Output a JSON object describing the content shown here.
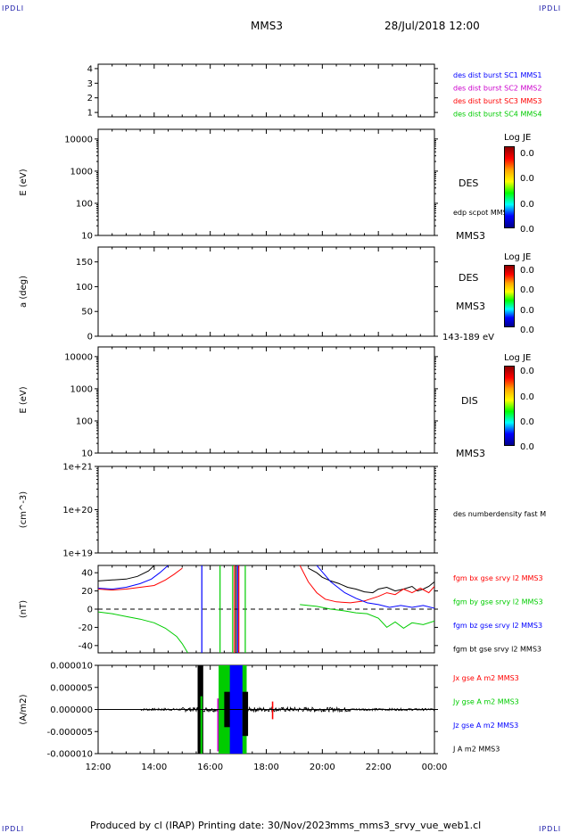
{
  "header": {
    "corner_tl": "IPDLI",
    "corner_tr": "IPDLI",
    "corner_bl": "IPDLI",
    "corner_br": "IPDLI",
    "spacecraft": "MMS3",
    "datetime": "28/Jul/2018 12:00"
  },
  "footer": {
    "produced_by": "Produced by cl (IRAP)",
    "printing_date": "Printing date: 30/Nov/2023",
    "file": "mms_mms3_srvy_vue_web1.cl"
  },
  "colorbars": [
    {
      "title": "Log JE",
      "ticks": [
        "0.0",
        "0.0",
        "0.0",
        "0.0"
      ]
    },
    {
      "title": "Log JE",
      "ticks": [
        "0.0",
        "0.0",
        "0.0",
        "0.0"
      ]
    },
    {
      "title": "Log JE",
      "ticks": [
        "0.0",
        "0.0",
        "0.0",
        "0.0"
      ]
    }
  ],
  "colors": {
    "c1": "#0000ff",
    "c2": "#cc00cc",
    "c3": "#ff0000",
    "c4": "#00cc00",
    "black": "#000000",
    "label_blue": "#1a1aa8"
  },
  "chart_data": [
    {
      "type": "line",
      "ylabel": "",
      "yticks": [
        "1",
        "2",
        "3",
        "4"
      ],
      "ylim": [
        0.7,
        4.3
      ],
      "legend": [
        {
          "label": "des dist burst SC1 MMS1",
          "color": "#0000ff"
        },
        {
          "label": "des dist burst SC2 MMS2",
          "color": "#cc00cc"
        },
        {
          "label": "des dist burst SC3 MMS3",
          "color": "#ff0000"
        },
        {
          "label": "des dist burst SC4 MMS4",
          "color": "#00cc00"
        }
      ],
      "series": []
    },
    {
      "type": "heatmap",
      "ylabel": "E (eV)",
      "scale": "log",
      "yticks": [
        "10",
        "100",
        "1000",
        "10000"
      ],
      "ylim": [
        10,
        20000
      ],
      "right_labels": [
        "DES",
        "edp scpot MMS3",
        "MMS3"
      ],
      "series": []
    },
    {
      "type": "heatmap",
      "ylabel": "a (deg)",
      "yticks": [
        "0",
        "50",
        "100",
        "150"
      ],
      "ylim": [
        0,
        180
      ],
      "right_labels": [
        "DES",
        "MMS3",
        "143-189 eV"
      ],
      "series": []
    },
    {
      "type": "heatmap",
      "ylabel": "E (eV)",
      "scale": "log",
      "yticks": [
        "10",
        "100",
        "1000",
        "10000"
      ],
      "ylim": [
        10,
        20000
      ],
      "right_labels": [
        "DIS",
        "MMS3"
      ],
      "series": []
    },
    {
      "type": "line",
      "ylabel": "(cm^-3)",
      "scale": "log",
      "yticks": [
        "1e+19",
        "1e+20",
        "1e+21"
      ],
      "ylim": [
        1e+19,
        1e+21
      ],
      "right_labels": [
        "des numberdensity fast M"
      ],
      "series": []
    },
    {
      "type": "line",
      "ylabel": "(nT)",
      "yticks": [
        "-40",
        "-20",
        "0",
        "20",
        "40"
      ],
      "ylim": [
        -48,
        48
      ],
      "x_hours": [
        12,
        24
      ],
      "legend": [
        {
          "label": "fgm bx gse srvy l2 MMS3",
          "color": "#ff0000"
        },
        {
          "label": "fgm by gse srvy l2 MMS3",
          "color": "#00cc00"
        },
        {
          "label": "fgm bz gse srvy l2 MMS3",
          "color": "#0000ff"
        },
        {
          "label": "fgm bt gse srvy l2 MMS3",
          "color": "#000000"
        }
      ],
      "series": [
        {
          "name": "fgm bt gse srvy l2 MMS3",
          "color": "#000000",
          "segments": [
            [
              [
                12.0,
                31
              ],
              [
                12.5,
                32
              ],
              [
                13.0,
                33
              ],
              [
                13.4,
                36
              ],
              [
                13.8,
                42
              ],
              [
                14.0,
                48
              ]
            ],
            [
              [
                19.5,
                45
              ],
              [
                19.8,
                40
              ],
              [
                20.0,
                35
              ],
              [
                20.3,
                31
              ],
              [
                20.6,
                28
              ],
              [
                20.9,
                24
              ],
              [
                21.2,
                22
              ],
              [
                21.5,
                19
              ],
              [
                21.8,
                18
              ],
              [
                22.0,
                22
              ],
              [
                22.3,
                24
              ],
              [
                22.6,
                20
              ],
              [
                22.9,
                22
              ],
              [
                23.2,
                25
              ],
              [
                23.4,
                20
              ],
              [
                23.6,
                22
              ],
              [
                23.8,
                25
              ],
              [
                24.0,
                30
              ]
            ]
          ]
        },
        {
          "name": "fgm bx gse srvy l2 MMS3",
          "color": "#ff0000",
          "segments": [
            [
              [
                12.0,
                22
              ],
              [
                12.5,
                21
              ],
              [
                13.0,
                22
              ],
              [
                13.5,
                24
              ],
              [
                14.0,
                26
              ],
              [
                14.4,
                32
              ],
              [
                14.7,
                38
              ],
              [
                15.0,
                45
              ]
            ],
            [
              [
                19.2,
                48
              ],
              [
                19.5,
                30
              ],
              [
                19.8,
                18
              ],
              [
                20.1,
                11
              ],
              [
                20.5,
                8
              ],
              [
                21.0,
                7
              ],
              [
                21.5,
                9
              ],
              [
                22.0,
                14
              ],
              [
                22.3,
                18
              ],
              [
                22.6,
                16
              ],
              [
                22.9,
                22
              ],
              [
                23.2,
                18
              ],
              [
                23.5,
                23
              ],
              [
                23.8,
                18
              ],
              [
                24.0,
                25
              ]
            ]
          ]
        },
        {
          "name": "fgm bz gse srvy l2 MMS3",
          "color": "#0000ff",
          "segments": [
            [
              [
                12.0,
                23
              ],
              [
                12.5,
                22
              ],
              [
                13.0,
                24
              ],
              [
                13.5,
                28
              ],
              [
                13.9,
                33
              ],
              [
                14.2,
                40
              ],
              [
                14.5,
                48
              ]
            ],
            [
              [
                19.8,
                48
              ],
              [
                20.3,
                30
              ],
              [
                20.8,
                18
              ],
              [
                21.2,
                12
              ],
              [
                21.6,
                7
              ],
              [
                22.0,
                5
              ],
              [
                22.4,
                2
              ],
              [
                22.8,
                4
              ],
              [
                23.2,
                2
              ],
              [
                23.6,
                4
              ],
              [
                24.0,
                1
              ]
            ]
          ]
        },
        {
          "name": "fgm by gse srvy l2 MMS3",
          "color": "#00cc00",
          "segments": [
            [
              [
                12.0,
                -3
              ],
              [
                12.5,
                -5
              ],
              [
                13.0,
                -8
              ],
              [
                13.5,
                -11
              ],
              [
                14.0,
                -15
              ],
              [
                14.4,
                -21
              ],
              [
                14.8,
                -30
              ],
              [
                15.0,
                -38
              ],
              [
                15.2,
                -48
              ]
            ],
            [
              [
                19.2,
                5
              ],
              [
                19.8,
                3
              ],
              [
                20.3,
                0
              ],
              [
                20.8,
                -2
              ],
              [
                21.2,
                -4
              ],
              [
                21.6,
                -5
              ],
              [
                22.0,
                -10
              ],
              [
                22.3,
                -20
              ],
              [
                22.6,
                -14
              ],
              [
                22.9,
                -21
              ],
              [
                23.2,
                -15
              ],
              [
                23.6,
                -17
              ],
              [
                24.0,
                -13
              ]
            ]
          ]
        }
      ],
      "zero_line": 0,
      "verticals": [
        {
          "x": 15.7,
          "color": "#0000ff"
        },
        {
          "x": 16.35,
          "color": "#00cc00"
        },
        {
          "x": 16.8,
          "color": "#00cc00"
        },
        {
          "x": 16.86,
          "color": "#ff0000"
        },
        {
          "x": 16.92,
          "color": "#000000"
        },
        {
          "x": 16.98,
          "color": "#0000ff"
        },
        {
          "x": 17.02,
          "color": "#ff0000"
        },
        {
          "x": 17.25,
          "color": "#00cc00"
        }
      ]
    },
    {
      "type": "line",
      "ylabel": "(A/m2)",
      "yticks": [
        "-0.000010",
        "-0.000005",
        "0.000000",
        "0.000005",
        "0.000010"
      ],
      "ylim": [
        -1e-05,
        1e-05
      ],
      "legend": [
        {
          "label": "Jx gse A m2 MMS3",
          "color": "#ff0000"
        },
        {
          "label": "Jy gse A m2 MMS3",
          "color": "#00cc00"
        },
        {
          "label": "Jz gse A m2 MMS3",
          "color": "#0000ff"
        },
        {
          "label": "J A m2 MMS3",
          "color": "#000000"
        }
      ],
      "bursts": [
        {
          "x0": 15.55,
          "x1": 15.75,
          "lo": -1e-05,
          "hi": 1e-05,
          "color": "#000000"
        },
        {
          "x0": 15.65,
          "x1": 15.72,
          "lo": -1e-05,
          "hi": 3e-06,
          "color": "#00cc00"
        },
        {
          "x0": 16.25,
          "x1": 16.45,
          "lo": -9.5e-06,
          "hi": 2.5e-06,
          "color": "#cc00cc"
        },
        {
          "x0": 16.3,
          "x1": 17.3,
          "lo": -1e-05,
          "hi": 1e-05,
          "color": "#00cc00"
        },
        {
          "x0": 16.5,
          "x1": 16.8,
          "lo": -4e-06,
          "hi": 4e-06,
          "color": "#000000"
        },
        {
          "x0": 16.7,
          "x1": 17.15,
          "lo": -1e-05,
          "hi": 1e-05,
          "color": "#0000ff"
        },
        {
          "x0": 17.15,
          "x1": 17.35,
          "lo": -6e-06,
          "hi": 4e-06,
          "color": "#000000"
        },
        {
          "x0": 18.2,
          "x1": 18.25,
          "lo": -2.2e-06,
          "hi": 1.8e-06,
          "color": "#ff0000"
        }
      ],
      "noise_amp": 2.5e-07
    }
  ],
  "x_axis": {
    "ticks": [
      "12:00",
      "14:00",
      "16:00",
      "18:00",
      "20:00",
      "22:00",
      "00:00"
    ],
    "range_hours": [
      12,
      24
    ]
  }
}
